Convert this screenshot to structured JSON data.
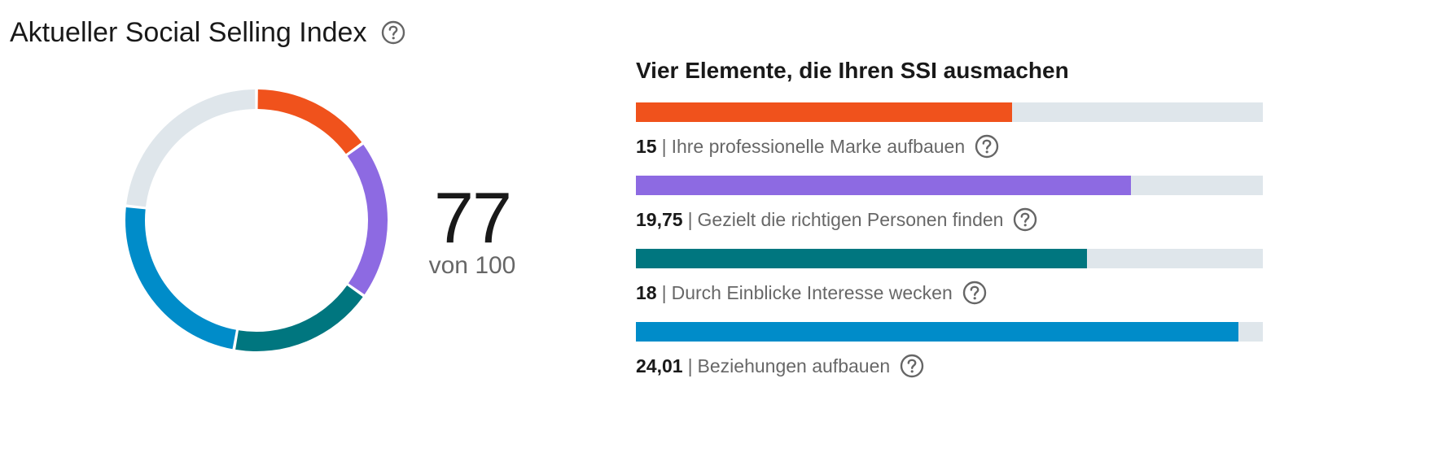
{
  "header": {
    "title": "Aktueller Social Selling Index",
    "help_icon": "question-circle-icon"
  },
  "score": {
    "value": "77",
    "max_label": "von 100",
    "total": 100
  },
  "colors": {
    "brand": "#f0521c",
    "find": "#8d6ae2",
    "insights": "#00767f",
    "relationships": "#008cc9",
    "track": "#dfe6eb",
    "remaining": "#dfe6eb"
  },
  "elements": {
    "title": "Vier Elemente, die Ihren SSI ausmachen",
    "items": [
      {
        "value": "15",
        "score": 15,
        "max": 25,
        "separator": "|",
        "label": "Ihre professionelle Marke aufbauen",
        "color_key": "brand",
        "help_icon": "question-circle-icon"
      },
      {
        "value": "19,75",
        "score": 19.75,
        "max": 25,
        "separator": "|",
        "label": "Gezielt die richtigen Personen finden",
        "color_key": "find",
        "help_icon": "question-circle-icon"
      },
      {
        "value": "18",
        "score": 18,
        "max": 25,
        "separator": "|",
        "label": "Durch Einblicke Interesse wecken",
        "color_key": "insights",
        "help_icon": "question-circle-icon"
      },
      {
        "value": "24,01",
        "score": 24.01,
        "max": 25,
        "separator": "|",
        "label": "Beziehungen aufbauen",
        "color_key": "relationships",
        "help_icon": "question-circle-icon"
      }
    ]
  }
}
